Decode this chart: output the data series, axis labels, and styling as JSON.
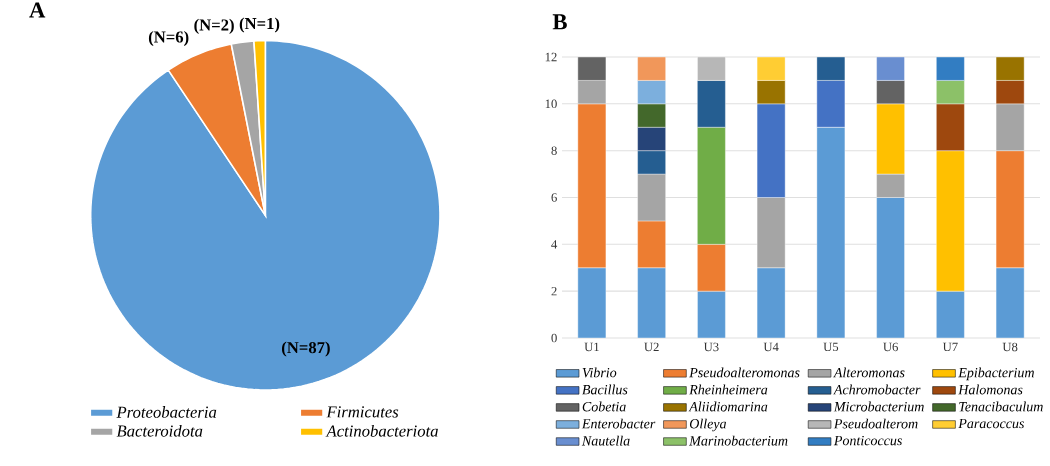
{
  "chart_data": [
    {
      "type": "pie",
      "title": "A",
      "categories": [
        "Proteobacteria",
        "Firmicutes",
        "Bacteroidota",
        "Actinobacteriota"
      ],
      "values": [
        87,
        6,
        2,
        1
      ],
      "value_labels": [
        "(N=87)",
        "(N=6)",
        "(N=2)",
        "(N=1)"
      ],
      "colors": [
        "#5b9bd5",
        "#ed7d31",
        "#a5a5a5",
        "#ffc000"
      ],
      "legend": "bottom"
    },
    {
      "type": "bar",
      "title": "B",
      "stacked": true,
      "categories": [
        "U1",
        "U2",
        "U3",
        "U4",
        "U5",
        "U6",
        "U7",
        "U8"
      ],
      "ylim": [
        0,
        12
      ],
      "yticks": [
        0,
        2,
        4,
        6,
        8,
        10,
        12
      ],
      "grid": "y",
      "legend": "bottom",
      "series": [
        {
          "name": "Vibrio",
          "color": "#5b9bd5",
          "values": [
            3,
            3,
            2,
            3,
            9,
            6,
            2,
            3
          ]
        },
        {
          "name": "Pseudoalteromonas",
          "color": "#ed7d31",
          "values": [
            7,
            2,
            2,
            null,
            null,
            null,
            null,
            5
          ]
        },
        {
          "name": "Alteromonas",
          "color": "#a5a5a5",
          "values": [
            1,
            2,
            null,
            3,
            null,
            1,
            null,
            2
          ]
        },
        {
          "name": "Epibacterium",
          "color": "#ffc000",
          "values": [
            null,
            null,
            null,
            null,
            null,
            3,
            6,
            null
          ]
        },
        {
          "name": "Bacillus",
          "color": "#4472c4",
          "values": [
            null,
            null,
            null,
            4,
            2,
            null,
            null,
            null
          ]
        },
        {
          "name": "Rheinheimera",
          "color": "#70ad47",
          "values": [
            null,
            null,
            5,
            null,
            null,
            null,
            null,
            null
          ]
        },
        {
          "name": "Achromobacter",
          "color": "#255e91",
          "values": [
            null,
            1,
            2,
            null,
            1,
            null,
            null,
            null
          ]
        },
        {
          "name": "Halomonas",
          "color": "#9e480e",
          "values": [
            null,
            null,
            null,
            null,
            null,
            null,
            2,
            1
          ]
        },
        {
          "name": "Cobetia",
          "color": "#636363",
          "values": [
            1,
            null,
            null,
            null,
            null,
            1,
            null,
            null
          ]
        },
        {
          "name": "Aliidiomarina",
          "color": "#997300",
          "values": [
            null,
            null,
            null,
            1,
            null,
            null,
            null,
            1
          ]
        },
        {
          "name": "Microbacterium",
          "color": "#264478",
          "values": [
            null,
            1,
            null,
            null,
            null,
            null,
            null,
            null
          ]
        },
        {
          "name": "Tenacibaculum",
          "color": "#43682b",
          "values": [
            null,
            1,
            null,
            null,
            null,
            null,
            null,
            null
          ]
        },
        {
          "name": "Enterobacter",
          "color": "#7cafdd",
          "values": [
            null,
            1,
            null,
            null,
            null,
            null,
            null,
            null
          ]
        },
        {
          "name": "Olleya",
          "color": "#f1975a",
          "values": [
            null,
            1,
            null,
            null,
            null,
            null,
            null,
            null
          ]
        },
        {
          "name": "Pseudoalterom",
          "color": "#b7b7b7",
          "values": [
            null,
            null,
            1,
            null,
            null,
            null,
            null,
            null
          ]
        },
        {
          "name": "Paracoccus",
          "color": "#ffcd33",
          "values": [
            null,
            null,
            null,
            1,
            null,
            null,
            null,
            null
          ]
        },
        {
          "name": "Nautella",
          "color": "#698ed0",
          "values": [
            null,
            null,
            null,
            null,
            null,
            1,
            null,
            null
          ]
        },
        {
          "name": "Marinobacterium",
          "color": "#8cc168",
          "values": [
            null,
            null,
            null,
            null,
            null,
            null,
            1,
            null
          ]
        },
        {
          "name": "Ponticoccus",
          "color": "#327dc2",
          "values": [
            null,
            null,
            null,
            null,
            null,
            null,
            1,
            null
          ]
        }
      ]
    }
  ]
}
